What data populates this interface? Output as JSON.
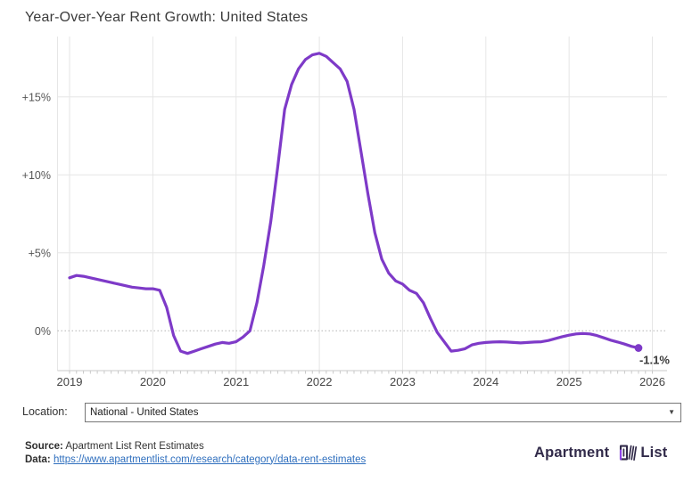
{
  "title": "Year-Over-Year Rent Growth: United States",
  "chart_data": {
    "type": "line",
    "title": "Year-Over-Year Rent Growth: United States",
    "series_name": "Year-over-year rent growth (%)",
    "frequency": "monthly",
    "start_month": "2019-01",
    "values": [
      3.4,
      3.55,
      3.5,
      3.4,
      3.3,
      3.2,
      3.1,
      3.0,
      2.9,
      2.8,
      2.75,
      2.7,
      2.7,
      2.6,
      1.5,
      -0.3,
      -1.3,
      -1.45,
      -1.3,
      -1.15,
      -1.0,
      -0.85,
      -0.75,
      -0.8,
      -0.7,
      -0.4,
      0.0,
      1.8,
      4.2,
      7.0,
      10.5,
      14.2,
      15.8,
      16.8,
      17.4,
      17.7,
      17.8,
      17.6,
      17.2,
      16.8,
      16.0,
      14.2,
      11.5,
      8.8,
      6.3,
      4.6,
      3.7,
      3.2,
      3.0,
      2.6,
      2.4,
      1.8,
      0.8,
      -0.1,
      -0.7,
      -1.3,
      -1.25,
      -1.15,
      -0.9,
      -0.8,
      -0.75,
      -0.72,
      -0.7,
      -0.72,
      -0.75,
      -0.78,
      -0.75,
      -0.72,
      -0.7,
      -0.62,
      -0.5,
      -0.38,
      -0.28,
      -0.2,
      -0.17,
      -0.2,
      -0.3,
      -0.45,
      -0.6,
      -0.72,
      -0.85,
      -1.0,
      -1.1
    ],
    "x_ticks": [
      {
        "value": 2019,
        "label": "2019"
      },
      {
        "value": 2020,
        "label": "2020"
      },
      {
        "value": 2021,
        "label": "2021"
      },
      {
        "value": 2022,
        "label": "2022"
      },
      {
        "value": 2023,
        "label": "2023"
      },
      {
        "value": 2024,
        "label": "2024"
      },
      {
        "value": 2025,
        "label": "2025"
      },
      {
        "value": 2026,
        "label": "2026"
      }
    ],
    "y_ticks": [
      {
        "value": 0,
        "label": "0%"
      },
      {
        "value": 5,
        "label": "+5%"
      },
      {
        "value": 10,
        "label": "+10%"
      },
      {
        "value": 15,
        "label": "+15%"
      }
    ],
    "xlim": [
      2018.85,
      2026.15
    ],
    "ylim": [
      -2.6,
      18.9
    ],
    "grid": true,
    "zero_line_style": "dotted",
    "line_color": "#7e3ac8",
    "end_label": "-1.1%",
    "end_label_color": "#3a3a3a"
  },
  "controls": {
    "location_label": "Location:",
    "location_value": "National - United States",
    "dropdown_arrow": "▼"
  },
  "footer": {
    "source_label": "Source:",
    "source_text": " Apartment List Rent Estimates",
    "data_label": "Data:",
    "data_link": "https://www.apartmentlist.com/research/category/data-rent-estimates"
  },
  "brand": {
    "word1": "Apartment",
    "word2": "List",
    "text_color": "#322b4a",
    "accent_color": "#8f45e8"
  }
}
